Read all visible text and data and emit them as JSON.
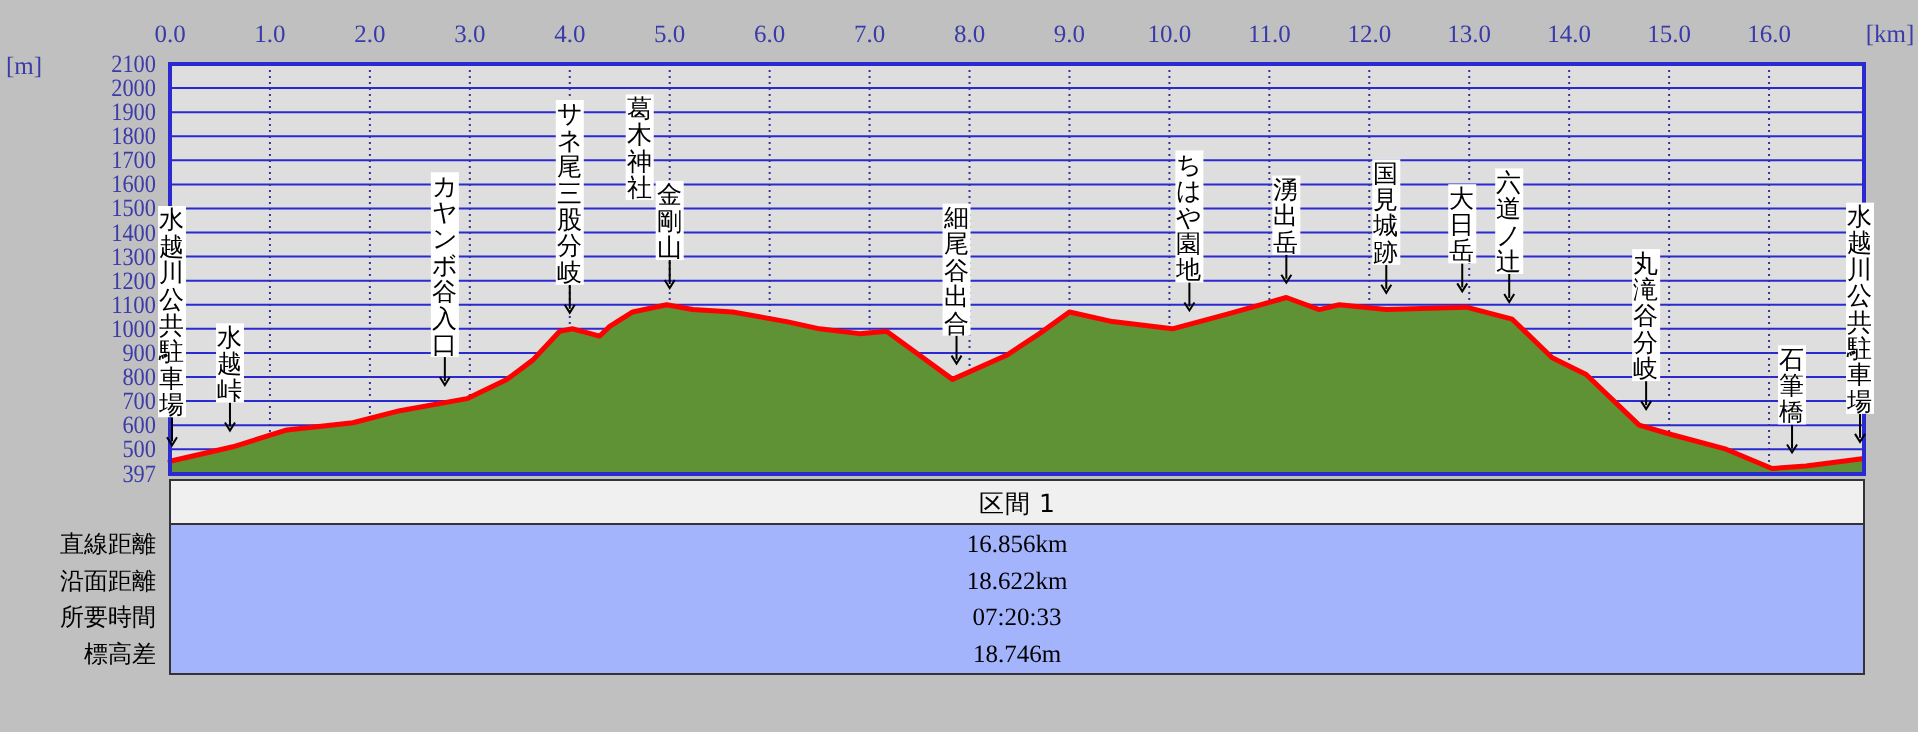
{
  "chart_data": {
    "type": "area",
    "xlabel": "[km]",
    "ylabel": "[m]",
    "x": [
      0,
      0.63,
      1.17,
      1.83,
      2.3,
      2.97,
      3.37,
      3.63,
      3.9,
      4.03,
      4.3,
      4.4,
      4.63,
      4.97,
      5.23,
      5.63,
      6.17,
      6.5,
      6.9,
      7.17,
      7.5,
      7.83,
      8.37,
      8.7,
      9.0,
      9.43,
      10.03,
      10.57,
      11.17,
      11.5,
      11.7,
      12.17,
      12.97,
      13.43,
      13.83,
      14.17,
      14.7,
      15.03,
      15.57,
      16.03,
      16.37,
      16.93
    ],
    "series": [
      {
        "type": "area",
        "color": "#5e9234",
        "values": [
          450,
          510,
          580,
          610,
          660,
          710,
          790,
          870,
          990,
          1000,
          970,
          1010,
          1070,
          1100,
          1080,
          1070,
          1030,
          1000,
          980,
          990,
          890,
          790,
          890,
          980,
          1070,
          1030,
          1000,
          1060,
          1130,
          1080,
          1100,
          1080,
          1090,
          1040,
          880,
          810,
          600,
          560,
          500,
          420,
          430,
          460
        ]
      },
      {
        "type": "line",
        "color": "#ff0000",
        "values": [
          450,
          510,
          580,
          610,
          660,
          710,
          790,
          870,
          990,
          1000,
          970,
          1010,
          1070,
          1100,
          1080,
          1070,
          1030,
          1000,
          980,
          990,
          890,
          790,
          890,
          980,
          1070,
          1030,
          1000,
          1060,
          1130,
          1080,
          1100,
          1080,
          1090,
          1040,
          880,
          810,
          600,
          560,
          500,
          420,
          430,
          460
        ]
      }
    ],
    "xlim": [
      0,
      16.95
    ],
    "ylim": [
      397,
      2100
    ],
    "xticks": [
      {
        "value": 0,
        "label": "0.0"
      },
      {
        "value": 1,
        "label": "1.0"
      },
      {
        "value": 2,
        "label": "2.0"
      },
      {
        "value": 3,
        "label": "3.0"
      },
      {
        "value": 4,
        "label": "4.0"
      },
      {
        "value": 5,
        "label": "5.0"
      },
      {
        "value": 6,
        "label": "6.0"
      },
      {
        "value": 7,
        "label": "7.0"
      },
      {
        "value": 8,
        "label": "8.0"
      },
      {
        "value": 9,
        "label": "9.0"
      },
      {
        "value": 10,
        "label": "10.0"
      },
      {
        "value": 11,
        "label": "11.0"
      },
      {
        "value": 12,
        "label": "12.0"
      },
      {
        "value": 13,
        "label": "13.0"
      },
      {
        "value": 14,
        "label": "14.0"
      },
      {
        "value": 15,
        "label": "15.0"
      },
      {
        "value": 16,
        "label": "16.0"
      }
    ],
    "yticks": [
      397,
      500,
      600,
      700,
      800,
      900,
      1000,
      1100,
      1200,
      1300,
      1400,
      1500,
      1600,
      1700,
      1800,
      1900,
      2000,
      2100
    ],
    "grid": true,
    "annotations": [
      {
        "text": "水越川公共駐車場",
        "x": 0,
        "y": 450
      },
      {
        "text": "水越峠",
        "x": 0.6,
        "y": 511
      },
      {
        "text": "カヤンボ谷入口",
        "x": 2.75,
        "y": 700
      },
      {
        "text": "サネ尾三股分岐",
        "x": 4.0,
        "y": 1000
      },
      "葛木神社",
      {
        "text": "金剛山",
        "x": 5.0,
        "y": 1103
      },
      {
        "text": "細尾谷出合",
        "x": 7.87,
        "y": 789
      },
      {
        "text": "ちはや園地",
        "x": 10.2,
        "y": 1010
      },
      {
        "text": "湧出岳",
        "x": 11.17,
        "y": 1125
      },
      {
        "text": "国見城跡",
        "x": 12.17,
        "y": 1083
      },
      {
        "text": "大日岳",
        "x": 12.93,
        "y": 1089
      },
      {
        "text": "六道ノ辻",
        "x": 13.4,
        "y": 1045
      },
      {
        "text": "丸滝谷分岐",
        "x": 14.77,
        "y": 600
      },
      {
        "text": "石筆橋",
        "x": 16.23,
        "y": 420
      },
      {
        "text": "水越川公共駐車場",
        "x": 16.93,
        "y": 464
      },
      "区間 1",
      "直線距離",
      "16.856km",
      "沿面距離",
      "18.622km",
      "所要時間",
      "07:20:33",
      "標高差",
      "18.746m"
    ]
  }
}
